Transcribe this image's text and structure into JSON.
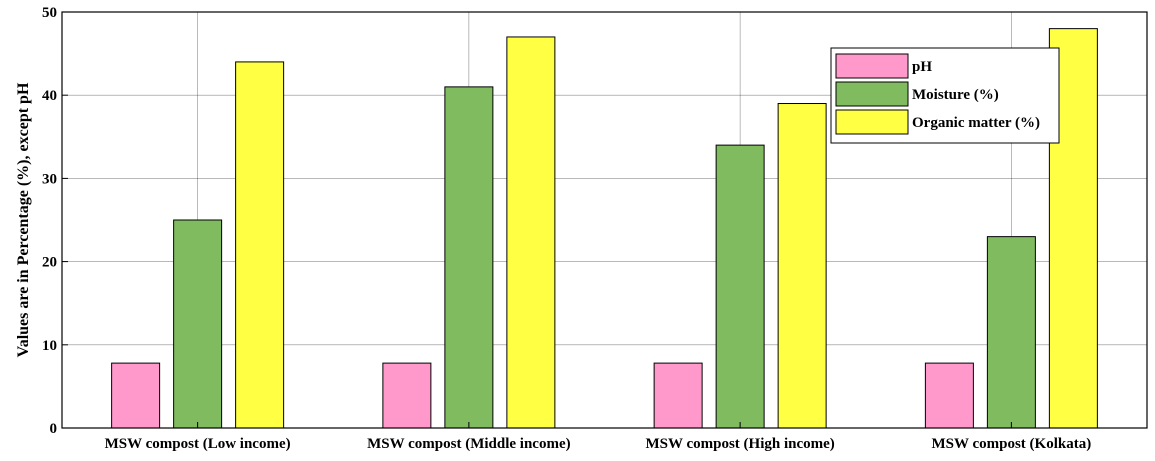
{
  "chart_data": {
    "type": "bar",
    "ylabel": "Values are in Percentage (%), except pH",
    "xlabel": "",
    "ylim": [
      0,
      50
    ],
    "yticks": [
      0,
      10,
      20,
      30,
      40,
      50
    ],
    "grid": true,
    "legend_position": "top-right",
    "categories": [
      "MSW compost (Low income)",
      "MSW compost (Middle income)",
      "MSW compost (High income)",
      "MSW compost (Kolkata)"
    ],
    "series": [
      {
        "name": "pH",
        "color": "#ff99cc",
        "values": [
          7.8,
          7.8,
          7.8,
          7.8
        ]
      },
      {
        "name": "Moisture (%)",
        "color": "#80bb60",
        "values": [
          25,
          41,
          34,
          23
        ]
      },
      {
        "name": "Organic matter (%)",
        "color": "#ffff44",
        "values": [
          44,
          47,
          39,
          48
        ]
      }
    ]
  }
}
